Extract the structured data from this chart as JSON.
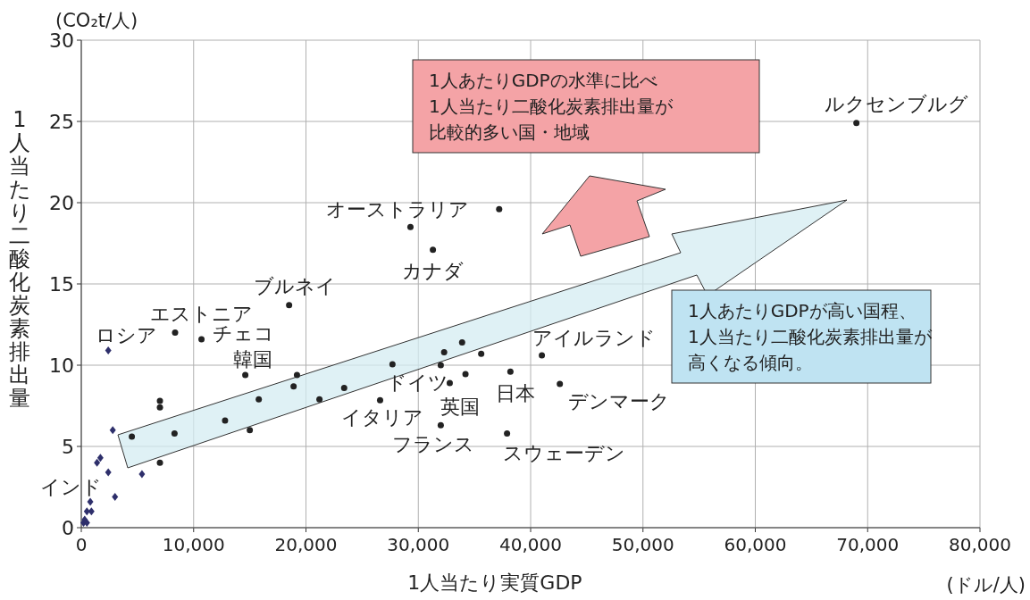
{
  "chart_data": {
    "type": "scatter",
    "xlabel": "1人当たり実質GDP",
    "ylabel": "1人当たり二酸化炭素排出量",
    "xlim": [
      0,
      80000
    ],
    "ylim": [
      0,
      30
    ],
    "xticks": [
      0,
      {
        "value": 10000,
        "label": "10,000"
      },
      {
        "value": 20000,
        "label": "20,000"
      },
      {
        "value": 30000,
        "label": "30,000"
      },
      {
        "value": 40000,
        "label": "40,000"
      },
      {
        "value": 50000,
        "label": "50,000"
      },
      {
        "value": 60000,
        "label": "60,000"
      },
      {
        "value": 70000,
        "label": "70,000"
      },
      {
        "value": 80000,
        "label": "80,000"
      }
    ],
    "yticks": [
      0,
      5,
      10,
      15,
      20,
      25,
      30
    ],
    "grid": true,
    "series": [
      {
        "color": "#2e2f6b",
        "marker": "diamond",
        "x": [
          2400,
          2800,
          1400,
          1700,
          2400,
          5400,
          3000,
          800,
          500,
          900,
          200,
          500,
          300
        ],
        "values": [
          10.9,
          6.0,
          4.0,
          4.3,
          3.4,
          3.3,
          1.9,
          1.6,
          1.0,
          1.0,
          0.3,
          0.3,
          0.5
        ]
      },
      {
        "color": "#222222",
        "marker": "circle",
        "x": [
          69000,
          37200,
          29300,
          31300,
          18500,
          8350,
          10700,
          14600,
          19200,
          7000,
          7000,
          4500,
          8300,
          12800,
          15800,
          15000,
          18900,
          7000,
          21200,
          23400,
          27700,
          26600,
          32300,
          33900,
          35600,
          32000,
          34200,
          32800,
          32000,
          38200,
          41000,
          42600,
          37900
        ],
        "values": [
          24.9,
          19.6,
          18.5,
          17.1,
          13.7,
          12.0,
          11.6,
          9.4,
          9.4,
          7.8,
          7.4,
          5.6,
          5.8,
          6.6,
          7.9,
          6.0,
          8.7,
          4.0,
          7.9,
          8.6,
          10.05,
          7.85,
          10.8,
          11.4,
          10.7,
          10.0,
          9.45,
          8.9,
          6.3,
          9.6,
          10.6,
          8.85,
          5.8
        ]
      }
    ],
    "annotations": [
      "(CO₂t/人)",
      "(ドル/人)",
      "1人あたりGDPの水準に比べ",
      "1人当たり二酸化炭素排出量が",
      "比較的多い国・地域",
      "1人あたりGDPが高い国程、",
      "1人当たり二酸化炭素排出量が",
      "高くなる傾向。",
      {
        "text": "ルクセンブルグ",
        "x": 69000,
        "y": 24.9
      },
      {
        "text": "オーストラリア",
        "x": 37200,
        "y": 19.6
      },
      {
        "text": "カナダ",
        "x": 31300,
        "y": 17.1
      },
      {
        "text": "ブルネイ",
        "x": 18500,
        "y": 13.7
      },
      {
        "text": "エストニア",
        "x": 8350,
        "y": 12.0
      },
      {
        "text": "チェコ",
        "x": 10700,
        "y": 11.6
      },
      {
        "text": "ロシア",
        "x": 2400,
        "y": 10.9
      },
      {
        "text": "韓国",
        "x": 14600,
        "y": 9.4
      },
      {
        "text": "ドイツ",
        "x": 32000,
        "y": 10.0
      },
      {
        "text": "英国",
        "x": 32800,
        "y": 8.9
      },
      {
        "text": "日本",
        "x": 38200,
        "y": 9.6
      },
      {
        "text": "アイルランド",
        "x": 41000,
        "y": 10.6
      },
      {
        "text": "デンマーク",
        "x": 42600,
        "y": 8.85
      },
      {
        "text": "イタリア",
        "x": 26600,
        "y": 7.85
      },
      {
        "text": "フランス",
        "x": 32000,
        "y": 6.3
      },
      {
        "text": "スウェーデン",
        "x": 37900,
        "y": 5.8
      },
      {
        "text": "インド",
        "x": 500,
        "y": 1.0
      }
    ]
  }
}
